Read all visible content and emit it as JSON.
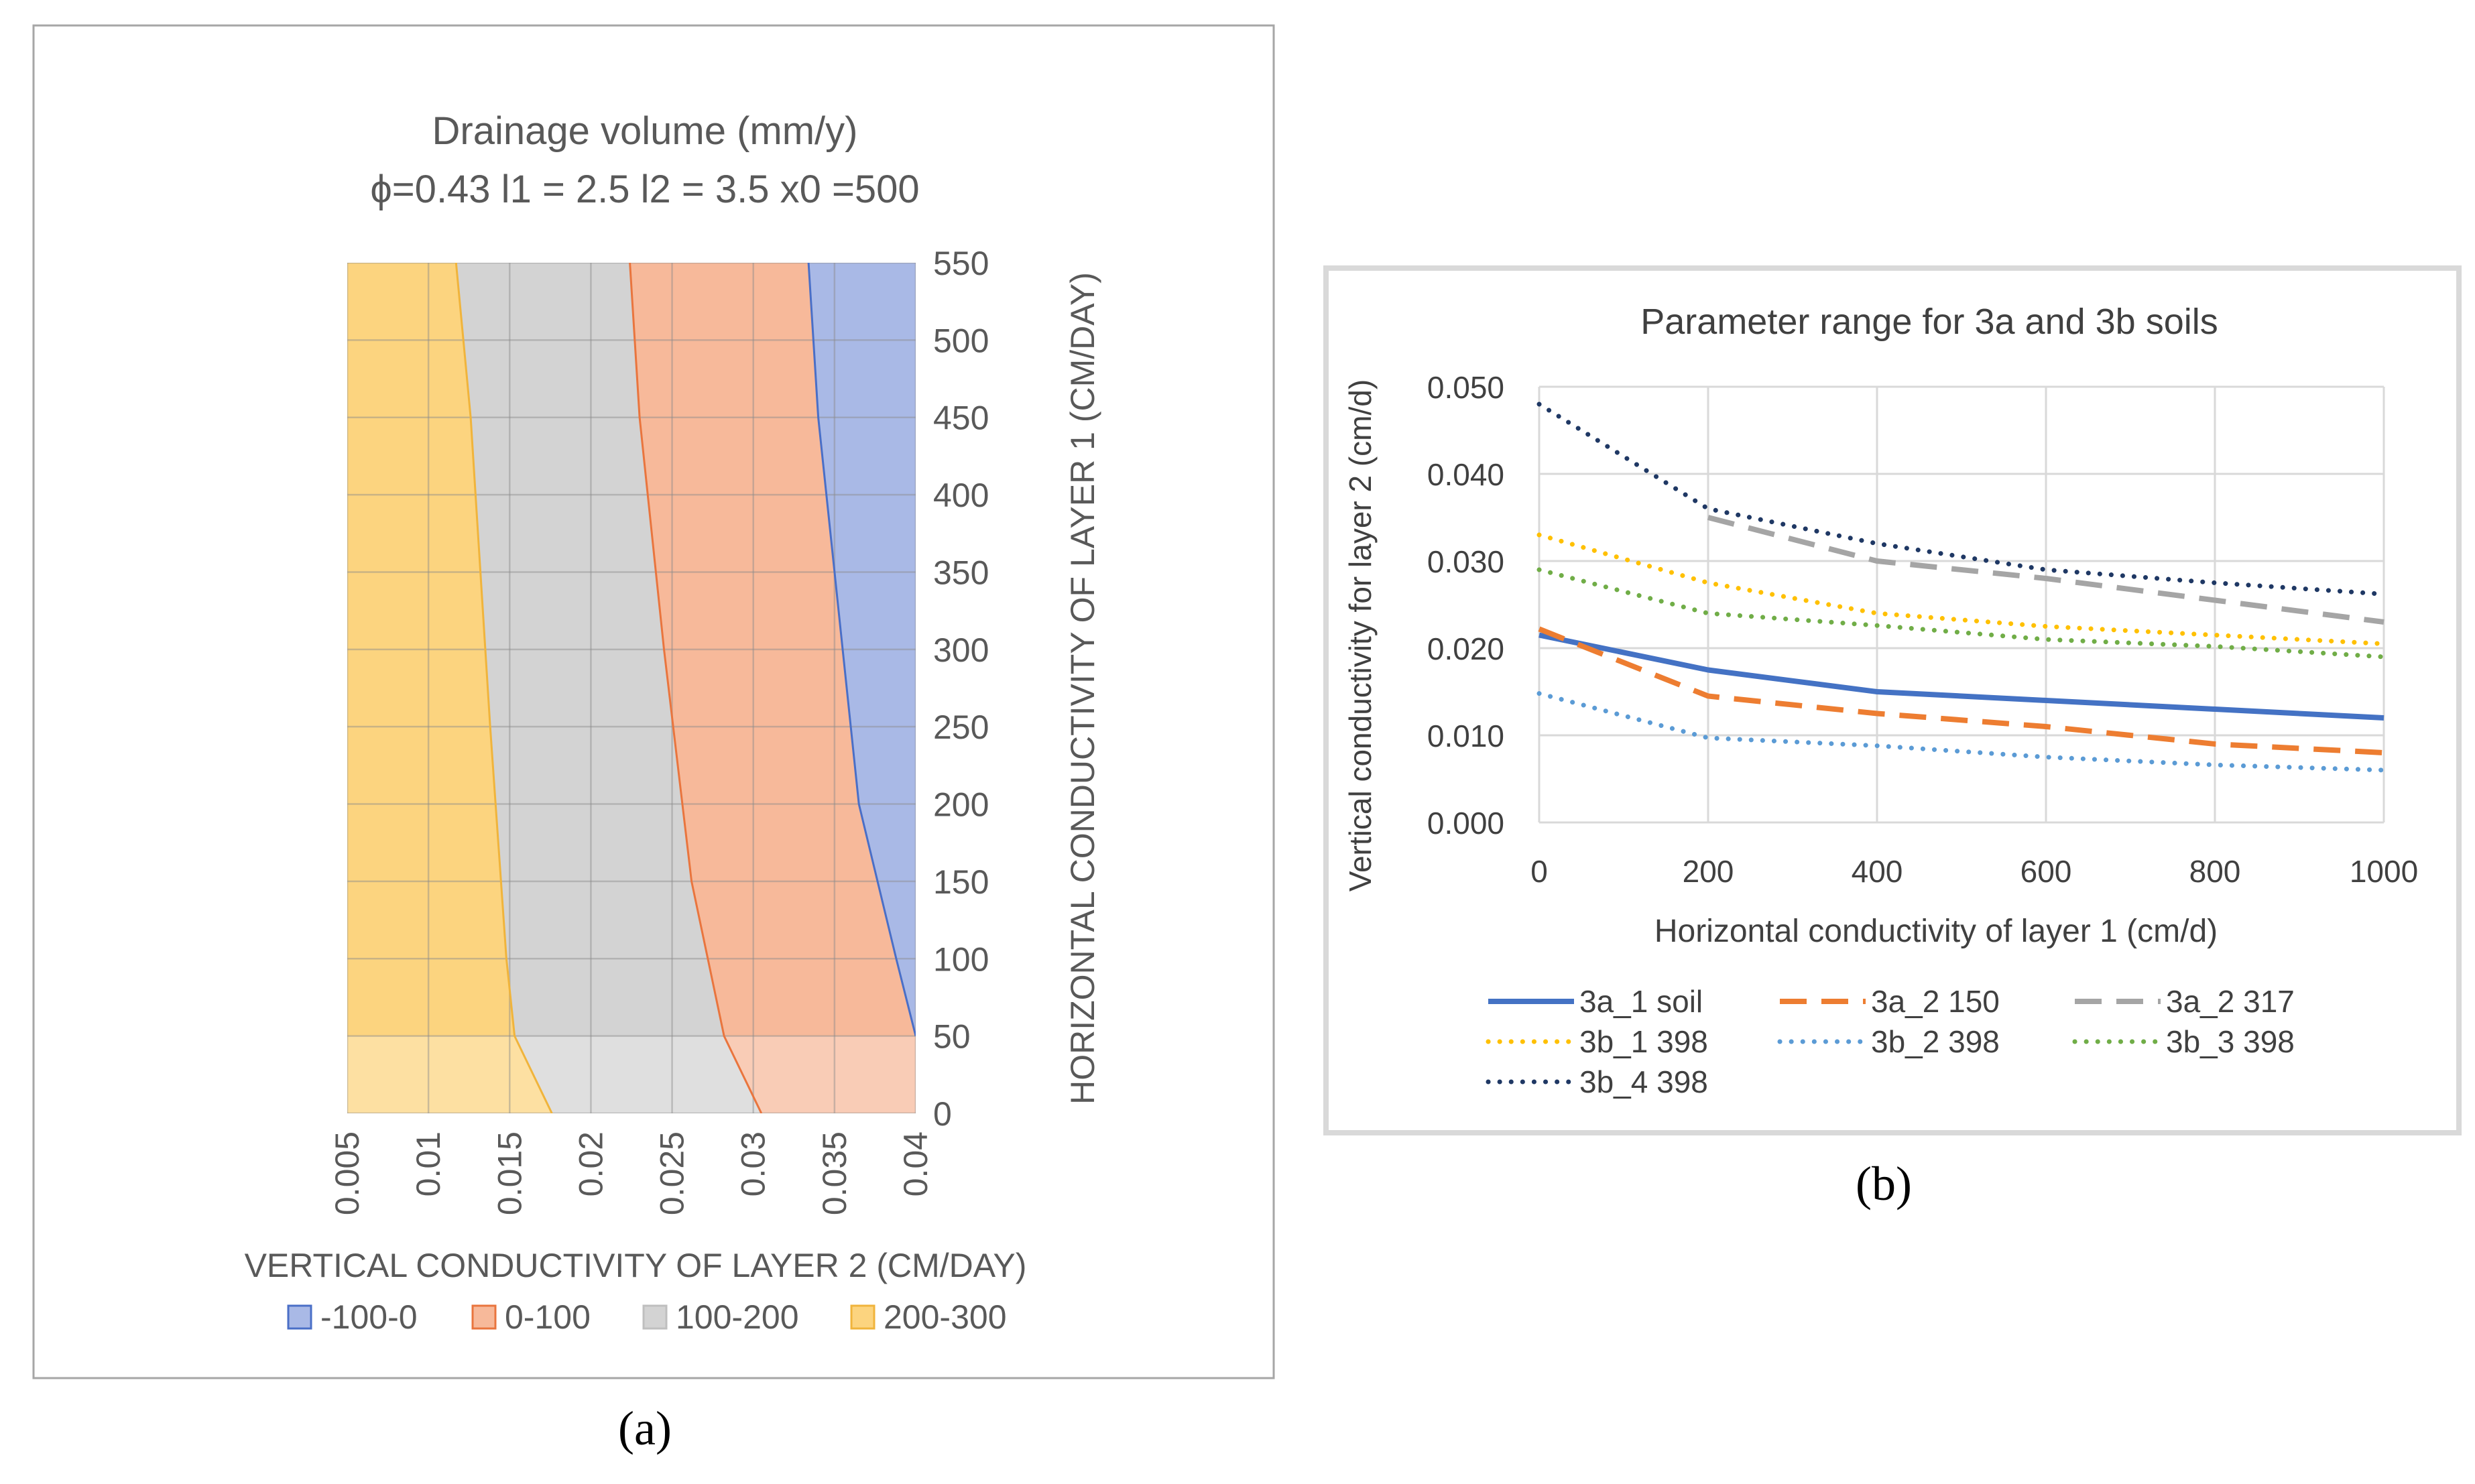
{
  "panel_labels": {
    "a": "(a)",
    "b": "(b)"
  },
  "colors": {
    "band_neg": "#A9B9E6",
    "band_neg_line": "#4A6FC7",
    "band_0_100": "#F7B99A",
    "band_0_100_line": "#E9753E",
    "band_100_200": "#D3D3D3",
    "band_100_200_line": "#BFBFBF",
    "band_200_300": "#FCD47F",
    "band_200_300_line": "#F0B43C",
    "s3a_1": "#4472C4",
    "s3a_2_150": "#ED7D31",
    "s3a_2_317": "#A5A5A5",
    "s3b_1": "#FFC000",
    "s3b_2": "#5B9BD5",
    "s3b_3": "#70AD47",
    "s3b_4": "#1F3864"
  },
  "chart_data": [
    {
      "type": "area",
      "subtype": "surface-contour",
      "title": "Drainage volume (mm/y)",
      "subtitle": "ϕ=0.43 l1 = 2.5 l2 = 3.5 x0 =500",
      "xlabel": "VERTICAL CONDUCTIVITY OF LAYER 2 (CM/DAY)",
      "ylabel": "HORIZONTAL CONDUCTIVITY OF LAYER 1 (CM/DAY)",
      "x_ticks": [
        "0.005",
        "0.01",
        "0.015",
        "0.02",
        "0.025",
        "0.03",
        "0.035",
        "0.04"
      ],
      "y_ticks": [
        "0",
        "50",
        "100",
        "150",
        "200",
        "250",
        "300",
        "350",
        "400",
        "450",
        "500",
        "550"
      ],
      "xlim": [
        0.005,
        0.04
      ],
      "ylim": [
        0,
        550
      ],
      "legend": [
        "-100-0",
        "0-100",
        "100-200",
        "200-300"
      ],
      "boundaries": [
        {
          "name": "200-300 | 100-200",
          "x": [
            0.0176,
            0.0153,
            0.0148,
            0.0138,
            0.0126,
            0.0117
          ],
          "y": [
            0,
            50,
            100,
            250,
            450,
            550
          ]
        },
        {
          "name": "100-200 | 0-100",
          "x": [
            0.0305,
            0.0282,
            0.0262,
            0.0245,
            0.023,
            0.0224
          ],
          "y": [
            0,
            50,
            150,
            300,
            450,
            550
          ]
        },
        {
          "name": "0-100 | -100-0",
          "x": [
            0.04,
            0.0388,
            0.0365,
            0.035,
            0.034,
            0.0334
          ],
          "y": [
            50,
            100,
            200,
            350,
            450,
            550
          ]
        }
      ]
    },
    {
      "type": "line",
      "title": "Parameter range for 3a and 3b soils",
      "xlabel": "Horizontal conductivity of layer 1 (cm/d)",
      "ylabel": "Vertical conductivity for layer 2 (cm/d)",
      "xlim": [
        0,
        1000
      ],
      "ylim": [
        0,
        0.05
      ],
      "x_ticks": [
        "0",
        "200",
        "400",
        "600",
        "800",
        "1000"
      ],
      "y_ticks": [
        "0.000",
        "0.010",
        "0.020",
        "0.030",
        "0.040",
        "0.050"
      ],
      "grid": true,
      "legend_position": "bottom",
      "series": [
        {
          "name": "3a_1 soil",
          "style": "solid",
          "x": [
            0,
            200,
            400,
            600,
            800,
            1000
          ],
          "y": [
            0.0215,
            0.0175,
            0.015,
            0.014,
            0.013,
            0.012
          ]
        },
        {
          "name": "3a_2 150",
          "style": "dashed",
          "x": [
            0,
            200,
            400,
            600,
            800,
            1000
          ],
          "y": [
            0.0222,
            0.0145,
            0.0125,
            0.011,
            0.009,
            0.008
          ]
        },
        {
          "name": "3a_2 317",
          "style": "dashed",
          "x": [
            200,
            400,
            600,
            800,
            1000
          ],
          "y": [
            0.035,
            0.03,
            0.028,
            0.0255,
            0.023
          ]
        },
        {
          "name": "3b_1 398",
          "style": "dotted",
          "x": [
            0,
            200,
            400,
            600,
            800,
            1000
          ],
          "y": [
            0.033,
            0.0275,
            0.024,
            0.0225,
            0.0215,
            0.0205
          ]
        },
        {
          "name": "3b_2 398",
          "style": "dotted",
          "x": [
            0,
            200,
            400,
            600,
            800,
            1000
          ],
          "y": [
            0.0148,
            0.0097,
            0.0088,
            0.0075,
            0.0066,
            0.006
          ]
        },
        {
          "name": "3b_3 398",
          "style": "dotted",
          "x": [
            0,
            200,
            400,
            600,
            800,
            1000
          ],
          "y": [
            0.029,
            0.024,
            0.0226,
            0.021,
            0.0202,
            0.019
          ]
        },
        {
          "name": "3b_4 398",
          "style": "dotted",
          "x": [
            0,
            200,
            400,
            600,
            800,
            1000
          ],
          "y": [
            0.048,
            0.036,
            0.032,
            0.029,
            0.0275,
            0.0262
          ]
        }
      ]
    }
  ]
}
